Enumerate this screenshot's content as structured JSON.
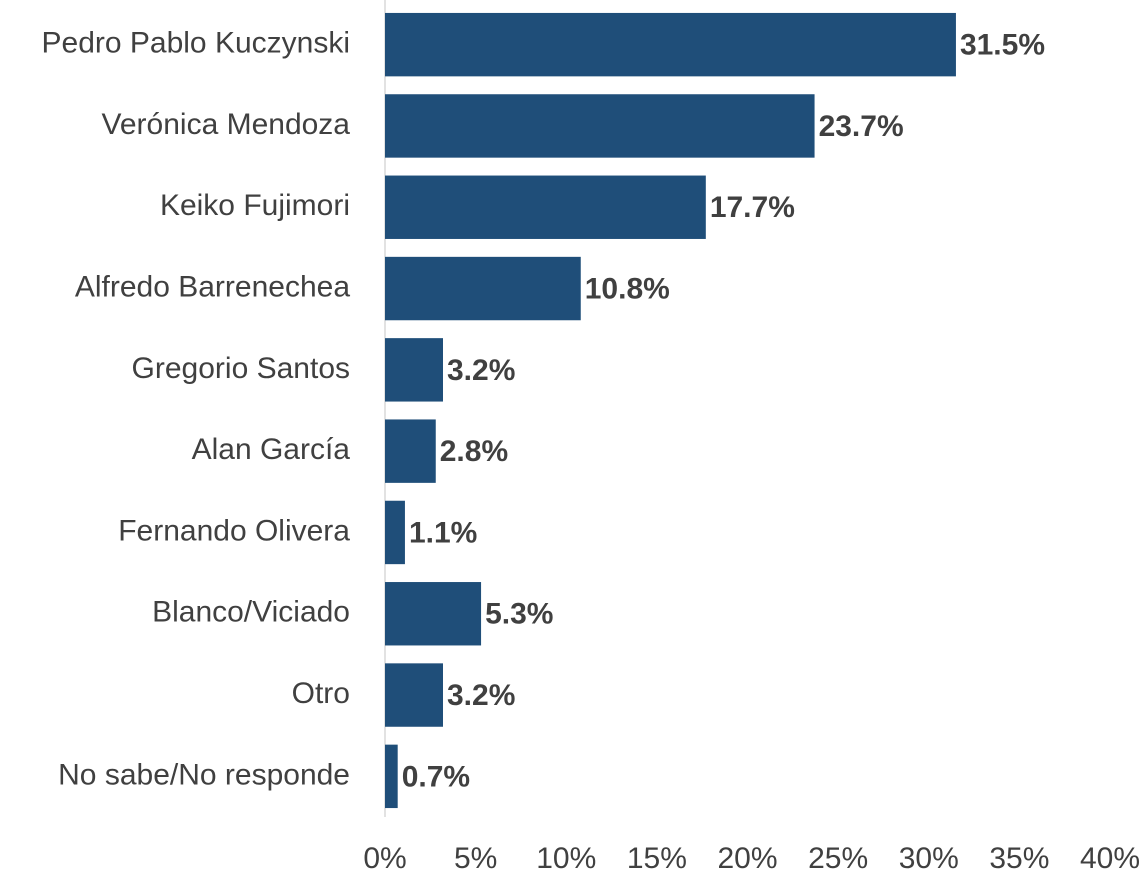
{
  "chart_data": {
    "type": "bar",
    "orientation": "horizontal",
    "categories": [
      "Pedro Pablo Kuczynski",
      "Verónica Mendoza",
      "Keiko Fujimori",
      "Alfredo Barrenechea",
      "Gregorio Santos",
      "Alan García",
      "Fernando Olivera",
      "Blanco/Viciado",
      "Otro",
      "No sabe/No responde"
    ],
    "values": [
      31.5,
      23.7,
      17.7,
      10.8,
      3.2,
      2.8,
      1.1,
      5.3,
      3.2,
      0.7
    ],
    "value_labels": [
      "31.5%",
      "23.7%",
      "17.7%",
      "10.8%",
      "3.2%",
      "2.8%",
      "1.1%",
      "5.3%",
      "3.2%",
      "0.7%"
    ],
    "color": "#1f4e79",
    "xlim": [
      0,
      40
    ],
    "xticks": [
      {
        "value": 0,
        "label": "0%"
      },
      {
        "value": 5,
        "label": "5%"
      },
      {
        "value": 10,
        "label": "10%"
      },
      {
        "value": 15,
        "label": "15%"
      },
      {
        "value": 20,
        "label": "20%"
      },
      {
        "value": 25,
        "label": "25%"
      },
      {
        "value": 30,
        "label": "30%"
      },
      {
        "value": 35,
        "label": "35%"
      },
      {
        "value": 40,
        "label": "40%"
      }
    ],
    "grid": false
  }
}
